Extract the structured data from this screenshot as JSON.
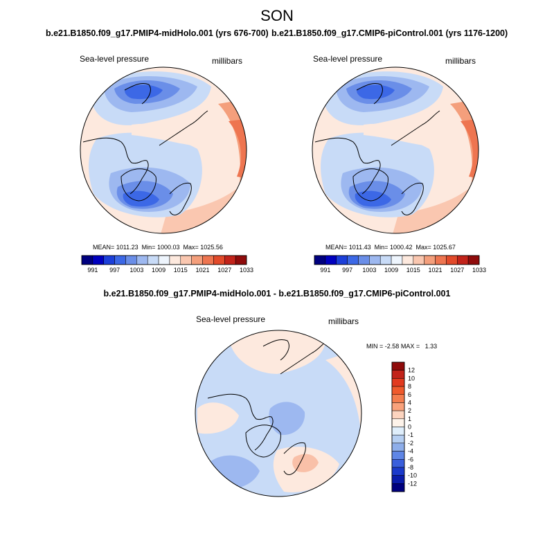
{
  "season": "SON",
  "panels": [
    {
      "run": "b.e21.B1850.f09_g17.PMIP4-midHolo.001 (yrs 676-700)",
      "variable": "Sea-level pressure",
      "units": "millibars",
      "stats": {
        "mean": "1011.23",
        "min": "1000.03",
        "max": "1025.56"
      }
    },
    {
      "run": "b.e21.B1850.f09_g17.CMIP6-piControl.001 (yrs 1176-1200)",
      "variable": "Sea-level pressure",
      "units": "millibars",
      "stats": {
        "mean": "1011.43",
        "min": "1000.42",
        "max": "1025.67"
      }
    }
  ],
  "stat_labels": {
    "mean": "MEAN=",
    "min": "Min=",
    "max": "Max="
  },
  "colorbar_abs": {
    "colors": [
      "#00007f",
      "#0000bf",
      "#1c3fd9",
      "#3c68e6",
      "#6a8ee8",
      "#9db8f0",
      "#c8dbf7",
      "#eef5fd",
      "#fde9de",
      "#fac7b0",
      "#f49f7c",
      "#ee7550",
      "#e24a2a",
      "#c2231a",
      "#8f0b0b"
    ],
    "labels": [
      "991",
      "997",
      "1003",
      "1009",
      "1015",
      "1021",
      "1027",
      "1033"
    ]
  },
  "difference": {
    "title": "b.e21.B1850.f09_g17.PMIP4-midHolo.001 - b.e21.B1850.f09_g17.CMIP6-piControl.001",
    "variable": "Sea-level pressure",
    "units": "millibars",
    "min_label": "MIN =",
    "min": "-2.58",
    "max_label": "MAX =",
    "max": "1.33",
    "colorbar": {
      "colors": [
        "#8f0b0b",
        "#c2231a",
        "#e23a1f",
        "#f05a2c",
        "#f47d4e",
        "#f9a27c",
        "#fcd4bf",
        "#fdf3ea",
        "#dfeefb",
        "#b6cff2",
        "#8eaeea",
        "#5f86e6",
        "#3a5fdc",
        "#1b3acb",
        "#0a1cab",
        "#00007f"
      ],
      "labels": [
        "12",
        "10",
        "8",
        "6",
        "4",
        "2",
        "1",
        "0",
        "-1",
        "-2",
        "-4",
        "-6",
        "-8",
        "-10",
        "-12"
      ]
    }
  },
  "fill_colors": {
    "ocean_warm": "#fde9de",
    "warm2": "#fac7b0",
    "warm3": "#f49f7c",
    "warm4": "#ee7550",
    "cool1": "#c8dbf7",
    "cool2": "#9db8f0",
    "cool3": "#6a8ee8",
    "cool4": "#3c68e6",
    "diff_pos": "#fde9de",
    "diff_neg": "#c8dbf7",
    "diff_neg2": "#9db8f0",
    "diff_pos2": "#f9c0a8"
  }
}
